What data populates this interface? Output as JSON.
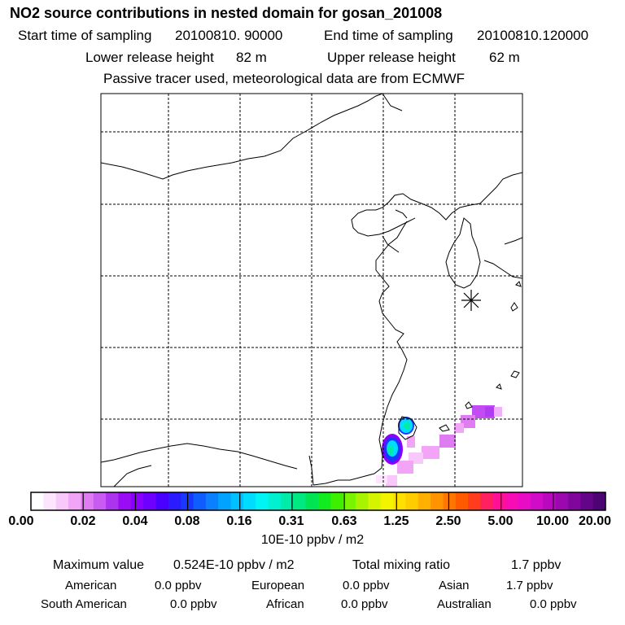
{
  "header": {
    "title": "NO2 source contributions in nested domain for gosan_201008",
    "start_label": "Start time of sampling",
    "start_value": "20100810. 90000",
    "end_label": "End time of sampling",
    "end_value": "20100810.120000",
    "lower_label": "Lower release height",
    "lower_value": "82 m",
    "upper_label": "Upper release height",
    "upper_value": "62 m",
    "note": "Passive tracer used, meteorological data are from ECMWF"
  },
  "colorbar": {
    "ticks": [
      "0.00",
      "0.02",
      "0.04",
      "0.08",
      "0.16",
      "0.31",
      "0.63",
      "1.25",
      "2.50",
      "5.00",
      "10.00",
      "20.00"
    ],
    "colors": [
      "#ffffff",
      "#fde6fd",
      "#f9c8fa",
      "#f2a5f7",
      "#e07cf2",
      "#c95cf0",
      "#ad34ef",
      "#9a0cf5",
      "#8a00ff",
      "#6e00ff",
      "#4a00ff",
      "#2a1cff",
      "#1838ff",
      "#0f5cff",
      "#0a80ff",
      "#00a4ff",
      "#00c0ff",
      "#00dcff",
      "#00f4f4",
      "#00f0d0",
      "#00eca8",
      "#00e880",
      "#00e454",
      "#10ec20",
      "#3cf000",
      "#7af400",
      "#a8f400",
      "#d4f400",
      "#f4f400",
      "#ffe000",
      "#ffcc00",
      "#ffb000",
      "#ff9400",
      "#ff7600",
      "#ff5a00",
      "#ff3c1e",
      "#ff2060",
      "#ff1094",
      "#f80cb4",
      "#e80cc4",
      "#d00cc8",
      "#b808c0",
      "#9c08b0",
      "#80069c",
      "#640488",
      "#4c0474"
    ],
    "units": "10E-10 ppbv / m2"
  },
  "summary": {
    "max_label": "Maximum value",
    "max_value": "0.524E-10 ppbv / m2",
    "total_label": "Total mixing ratio",
    "total_value": "1.7 ppbv"
  },
  "regions": [
    {
      "name": "American",
      "value": "0.0 ppbv"
    },
    {
      "name": "European",
      "value": "0.0 ppbv"
    },
    {
      "name": "Asian",
      "value": "1.7 ppbv"
    },
    {
      "name": "South American",
      "value": "0.0 ppbv"
    },
    {
      "name": "African",
      "value": "0.0 ppbv"
    },
    {
      "name": "Australian",
      "value": "0.0 ppbv"
    }
  ]
}
